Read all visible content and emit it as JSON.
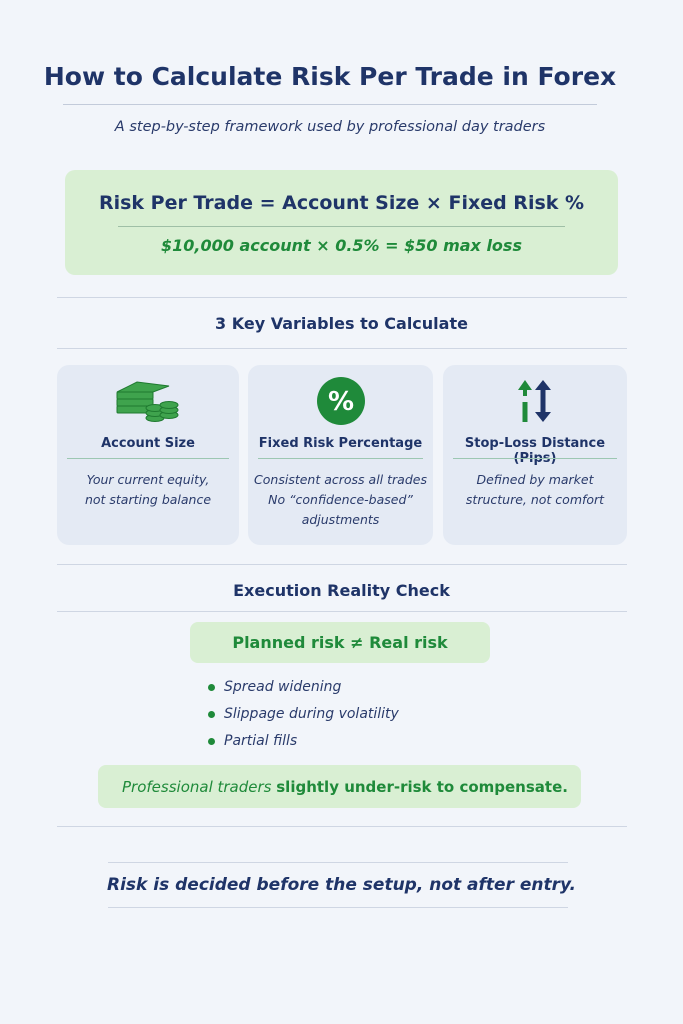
{
  "header": {
    "title": "How to Calculate Risk Per Trade in Forex",
    "subtitle": "A step-by-step framework used by professional day traders"
  },
  "formula": {
    "equation": "Risk Per Trade = Account Size × Fixed Risk %",
    "example": "$10,000 account × 0.5% = $50 max loss"
  },
  "variables": {
    "title": "3 Key Variables to Calculate",
    "cards": [
      {
        "icon": "money-stack-icon",
        "title": "Account Size",
        "lines": [
          "Your current equity,",
          "not starting balance"
        ]
      },
      {
        "icon": "percent-icon",
        "title": "Fixed Risk Percentage",
        "lines": [
          "Consistent across all trades",
          "No “confidence-based”",
          "adjustments"
        ]
      },
      {
        "icon": "up-down-arrows-icon",
        "title": "Stop-Loss Distance (Pips)",
        "lines": [
          "Defined by market",
          "structure, not comfort"
        ]
      }
    ]
  },
  "execution": {
    "title": "Execution Reality Check",
    "pill": "Planned risk ≠ Real risk",
    "bullets": [
      "Spread widening",
      "Slippage during volatility",
      "Partial fills"
    ],
    "note_prefix": "Professional traders ",
    "note_bold": "slightly under-risk to compensate."
  },
  "closing": "Risk is decided before the setup, not after entry.",
  "colors": {
    "navy": "#1f3468",
    "green": "#1f8a3a",
    "light_green": "#d9efd3",
    "background": "#f2f5fa"
  }
}
